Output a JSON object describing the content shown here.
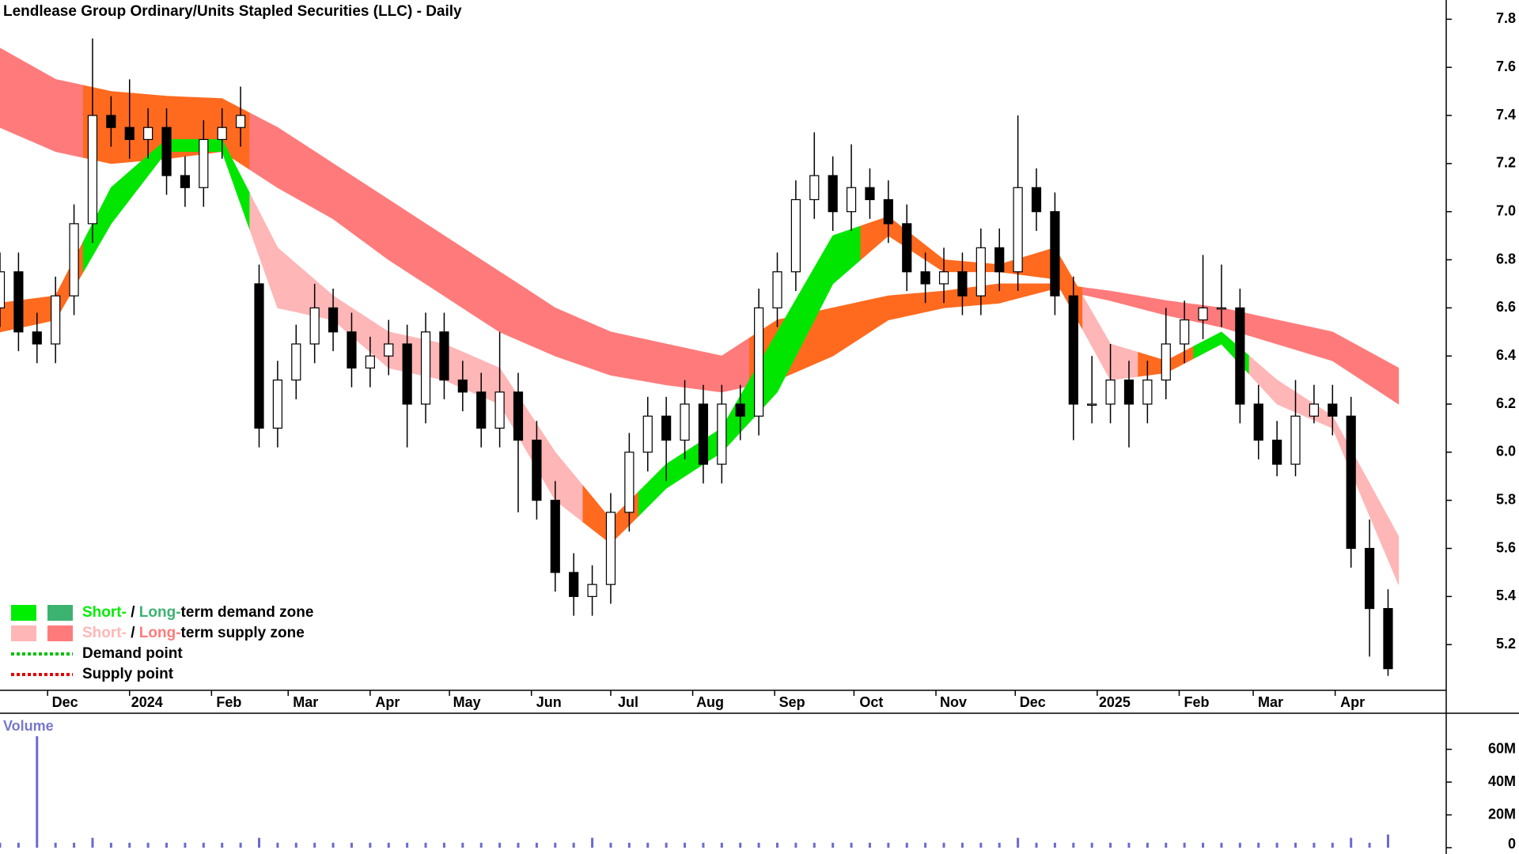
{
  "chart_data": {
    "type": "candlestick",
    "title": "Lendlease Group Ordinary/Units Stapled Securities (LLC) - Daily",
    "xlim": [
      0,
      547
    ],
    "xticks": [
      {
        "value": 18,
        "label": "Dec"
      },
      {
        "value": 49,
        "label": "2024"
      },
      {
        "value": 80,
        "label": "Feb"
      },
      {
        "value": 109,
        "label": "Mar"
      },
      {
        "value": 140,
        "label": "Apr"
      },
      {
        "value": 170,
        "label": "May"
      },
      {
        "value": 201,
        "label": "Jun"
      },
      {
        "value": 231,
        "label": "Jul"
      },
      {
        "value": 262,
        "label": "Aug"
      },
      {
        "value": 293,
        "label": "Sep"
      },
      {
        "value": 323,
        "label": "Oct"
      },
      {
        "value": 354,
        "label": "Nov"
      },
      {
        "value": 384,
        "label": "Dec"
      },
      {
        "value": 415,
        "label": "2025"
      },
      {
        "value": 446,
        "label": "Feb"
      },
      {
        "value": 474,
        "label": "Mar"
      },
      {
        "value": 505,
        "label": "Apr"
      }
    ],
    "ylim": [
      5.01,
      7.88
    ],
    "yticks": [
      5.2,
      5.4,
      5.6,
      5.8,
      {
        "value": 6.0,
        "label": "6.0"
      },
      6.2,
      6.4,
      6.6,
      6.8,
      {
        "value": 7.0,
        "label": "7.0"
      },
      7.2,
      7.4,
      7.6,
      7.8
    ],
    "up_color": "#ffffff",
    "down_color": "#000000",
    "x": [
      0,
      7,
      14,
      21,
      28,
      35,
      42,
      49,
      56,
      63,
      70,
      77,
      84,
      91,
      98,
      105,
      112,
      119,
      126,
      133,
      140,
      147,
      154,
      161,
      168,
      175,
      182,
      189,
      196,
      203,
      210,
      217,
      224,
      231,
      238,
      245,
      252,
      259,
      266,
      273,
      280,
      287,
      294,
      301,
      308,
      315,
      322,
      329,
      336,
      343,
      350,
      357,
      364,
      371,
      378,
      385,
      392,
      399,
      406,
      413,
      420,
      427,
      434,
      441,
      448,
      455,
      462,
      469,
      476,
      483,
      490,
      497,
      504,
      511,
      518,
      525
    ],
    "open": [
      6.6,
      6.75,
      6.5,
      6.45,
      6.65,
      6.95,
      7.4,
      7.35,
      7.3,
      7.35,
      7.15,
      7.1,
      7.3,
      7.35,
      6.7,
      6.1,
      6.3,
      6.45,
      6.6,
      6.5,
      6.35,
      6.4,
      6.45,
      6.2,
      6.5,
      6.3,
      6.25,
      6.1,
      6.25,
      6.05,
      5.8,
      5.5,
      5.4,
      5.45,
      5.75,
      6.0,
      6.15,
      6.05,
      6.2,
      5.95,
      6.2,
      6.15,
      6.6,
      6.75,
      7.05,
      7.15,
      7.0,
      7.1,
      7.05,
      6.95,
      6.75,
      6.7,
      6.75,
      6.65,
      6.85,
      6.75,
      7.1,
      7.0,
      6.65,
      6.2,
      6.2,
      6.3,
      6.2,
      6.3,
      6.45,
      6.55,
      6.6,
      6.6,
      6.2,
      6.05,
      5.95,
      6.15,
      6.2,
      6.15,
      5.6,
      5.35
    ],
    "high": [
      6.83,
      6.83,
      6.58,
      6.73,
      7.03,
      7.72,
      7.48,
      7.55,
      7.43,
      7.43,
      7.23,
      7.38,
      7.43,
      7.52,
      6.78,
      6.38,
      6.53,
      6.7,
      6.68,
      6.58,
      6.48,
      6.55,
      6.53,
      6.58,
      6.58,
      6.38,
      6.33,
      6.5,
      6.33,
      6.13,
      5.88,
      5.58,
      5.53,
      5.83,
      6.08,
      6.23,
      6.23,
      6.3,
      6.28,
      6.28,
      6.28,
      6.68,
      6.83,
      7.13,
      7.33,
      7.23,
      7.28,
      7.18,
      7.13,
      7.03,
      6.83,
      6.85,
      6.83,
      6.93,
      6.93,
      7.4,
      7.18,
      7.08,
      6.73,
      6.4,
      6.45,
      6.38,
      6.38,
      6.6,
      6.63,
      6.82,
      6.78,
      6.68,
      6.28,
      6.13,
      6.3,
      6.28,
      6.28,
      6.23,
      5.72,
      5.43
    ],
    "low": [
      6.52,
      6.42,
      6.37,
      6.37,
      6.57,
      6.87,
      7.27,
      7.22,
      7.22,
      7.07,
      7.02,
      7.02,
      7.22,
      7.27,
      6.02,
      6.02,
      6.22,
      6.37,
      6.42,
      6.27,
      6.27,
      6.32,
      6.02,
      6.12,
      6.22,
      6.17,
      6.02,
      6.02,
      5.75,
      5.72,
      5.42,
      5.32,
      5.32,
      5.37,
      5.67,
      5.92,
      5.88,
      5.97,
      5.87,
      5.87,
      6.05,
      6.07,
      6.52,
      6.67,
      6.97,
      6.92,
      6.92,
      6.97,
      6.87,
      6.67,
      6.62,
      6.62,
      6.57,
      6.57,
      6.67,
      6.67,
      6.92,
      6.57,
      6.05,
      6.12,
      6.12,
      6.02,
      6.12,
      6.22,
      6.37,
      6.47,
      6.52,
      6.12,
      5.97,
      5.9,
      5.9,
      6.12,
      6.07,
      5.52,
      5.15,
      5.07
    ],
    "close": [
      6.75,
      6.5,
      6.45,
      6.65,
      6.95,
      7.4,
      7.35,
      7.3,
      7.35,
      7.15,
      7.1,
      7.3,
      7.35,
      7.4,
      6.1,
      6.3,
      6.45,
      6.6,
      6.5,
      6.35,
      6.4,
      6.45,
      6.2,
      6.5,
      6.3,
      6.25,
      6.1,
      6.25,
      6.05,
      5.8,
      5.5,
      5.4,
      5.45,
      5.75,
      6.0,
      6.15,
      6.05,
      6.2,
      5.95,
      6.2,
      6.15,
      6.6,
      6.75,
      7.05,
      7.15,
      7.0,
      7.1,
      7.05,
      6.95,
      6.75,
      6.7,
      6.75,
      6.65,
      6.85,
      6.75,
      7.1,
      7.0,
      6.65,
      6.2,
      6.2,
      6.3,
      6.2,
      6.3,
      6.45,
      6.55,
      6.6,
      6.6,
      6.2,
      6.05,
      5.95,
      6.15,
      6.2,
      6.15,
      5.6,
      5.35,
      5.1
    ],
    "long_zone": {
      "x": [
        0,
        21,
        42,
        63,
        84,
        105,
        126,
        147,
        168,
        189,
        210,
        231,
        252,
        273,
        294,
        315,
        336,
        357,
        378,
        399,
        420,
        441,
        462,
        483,
        504,
        529
      ],
      "upper": [
        7.68,
        7.55,
        7.5,
        7.48,
        7.47,
        7.35,
        7.2,
        7.05,
        6.9,
        6.75,
        6.6,
        6.5,
        6.45,
        6.4,
        6.55,
        6.6,
        6.65,
        6.67,
        6.7,
        6.7,
        6.67,
        6.63,
        6.6,
        6.55,
        6.5,
        6.35
      ],
      "lower": [
        7.35,
        7.25,
        7.2,
        7.22,
        7.25,
        7.1,
        6.97,
        6.8,
        6.65,
        6.5,
        6.4,
        6.32,
        6.28,
        6.25,
        6.3,
        6.4,
        6.55,
        6.6,
        6.62,
        6.68,
        6.63,
        6.57,
        6.52,
        6.45,
        6.38,
        6.2
      ],
      "colors": [
        "#ff7b7b",
        "#ff7b7b",
        "#ff6a1f",
        "#ff6a1f",
        "#ff6a1f",
        "#ff7b7b",
        "#ff7b7b",
        "#ff7b7b",
        "#ff7b7b",
        "#ff7b7b",
        "#ff7b7b",
        "#ff7b7b",
        "#ff7b7b",
        "#ff7b7b",
        "#ff6a1f",
        "#ff6a1f",
        "#ff6a1f",
        "#ff6a1f",
        "#ff6a1f",
        "#ff6a1f",
        "#ff7b7b",
        "#ff7b7b",
        "#ff7b7b",
        "#ff7b7b",
        "#ff7b7b",
        "#ff7b7b"
      ]
    },
    "short_zone": {
      "x": [
        0,
        21,
        42,
        63,
        84,
        105,
        126,
        147,
        168,
        189,
        210,
        231,
        252,
        273,
        294,
        315,
        336,
        357,
        378,
        399,
        420,
        441,
        462,
        483,
        504,
        529
      ],
      "upper": [
        6.62,
        6.65,
        7.1,
        7.3,
        7.3,
        6.85,
        6.65,
        6.5,
        6.45,
        6.35,
        6.0,
        5.72,
        5.95,
        6.1,
        6.5,
        6.9,
        6.98,
        6.8,
        6.78,
        6.85,
        6.45,
        6.38,
        6.5,
        6.3,
        6.15,
        5.65
      ],
      "lower": [
        6.5,
        6.55,
        6.95,
        7.25,
        7.25,
        6.6,
        6.55,
        6.35,
        6.3,
        6.2,
        5.8,
        5.62,
        5.85,
        6.0,
        6.25,
        6.7,
        6.9,
        6.75,
        6.75,
        6.72,
        6.3,
        6.33,
        6.45,
        6.2,
        6.1,
        5.45
      ],
      "colors": [
        "#ff6a1f",
        "#ff6a1f",
        "#00e600",
        "#00e600",
        "#00e600",
        "#ffb6b6",
        "#ffb6b6",
        "#ffb6b6",
        "#ffb6b6",
        "#ffb6b6",
        "#ffb6b6",
        "#ff6a1f",
        "#00e600",
        "#00e600",
        "#00e600",
        "#00e600",
        "#ff6a1f",
        "#ff6a1f",
        "#ff6a1f",
        "#ff6a1f",
        "#ffb6b6",
        "#ff6a1f",
        "#00e600",
        "#ffb6b6",
        "#ffb6b6",
        "#ffb6b6"
      ]
    },
    "legend": [
      {
        "swatches": [
          "#00ee00",
          "#3cb371"
        ],
        "parts": [
          {
            "text": "Short-",
            "color": "#00ee00"
          },
          {
            "text": " / ",
            "color": "#000000"
          },
          {
            "text": "Long-",
            "color": "#3cb371"
          },
          {
            "text": "term demand zone",
            "color": "#000000"
          }
        ]
      },
      {
        "swatches": [
          "#ffb6b6",
          "#ff7b7b"
        ],
        "parts": [
          {
            "text": "Short-",
            "color": "#ffb6b6"
          },
          {
            "text": " / ",
            "color": "#000000"
          },
          {
            "text": "Long-",
            "color": "#ff7b7b"
          },
          {
            "text": "term supply zone",
            "color": "#000000"
          }
        ]
      },
      {
        "line_color": "#00c000",
        "parts": [
          {
            "text": "Demand point",
            "color": "#000000"
          }
        ]
      },
      {
        "line_color": "#e00000",
        "parts": [
          {
            "text": "Supply point",
            "color": "#000000"
          }
        ]
      }
    ],
    "volume": {
      "label": "Volume",
      "color": "#6a6ad0",
      "ylim": [
        0,
        82000000
      ],
      "yticks": [
        {
          "value": 0,
          "label": "0"
        },
        {
          "value": 20000000,
          "label": "20M"
        },
        {
          "value": 40000000,
          "label": "40M"
        },
        {
          "value": 60000000,
          "label": "60M"
        }
      ],
      "values": [
        3000000,
        3000000,
        68000000,
        3000000,
        3000000,
        6000000,
        3000000,
        3000000,
        3000000,
        3000000,
        3000000,
        3000000,
        3000000,
        3000000,
        6000000,
        3000000,
        3000000,
        3000000,
        3000000,
        3000000,
        3000000,
        3000000,
        3000000,
        3000000,
        3000000,
        3000000,
        3000000,
        3000000,
        3000000,
        3000000,
        3000000,
        3000000,
        6000000,
        3000000,
        3000000,
        3000000,
        3000000,
        3000000,
        3000000,
        3000000,
        3000000,
        3000000,
        3000000,
        3000000,
        3000000,
        3000000,
        3000000,
        3000000,
        3000000,
        3000000,
        3000000,
        3000000,
        3000000,
        3000000,
        3000000,
        6000000,
        3000000,
        3000000,
        3000000,
        3000000,
        3000000,
        3000000,
        3000000,
        3000000,
        3000000,
        3000000,
        3000000,
        3000000,
        3000000,
        3000000,
        3000000,
        3000000,
        3000000,
        6000000,
        3000000,
        8000000
      ]
    }
  }
}
